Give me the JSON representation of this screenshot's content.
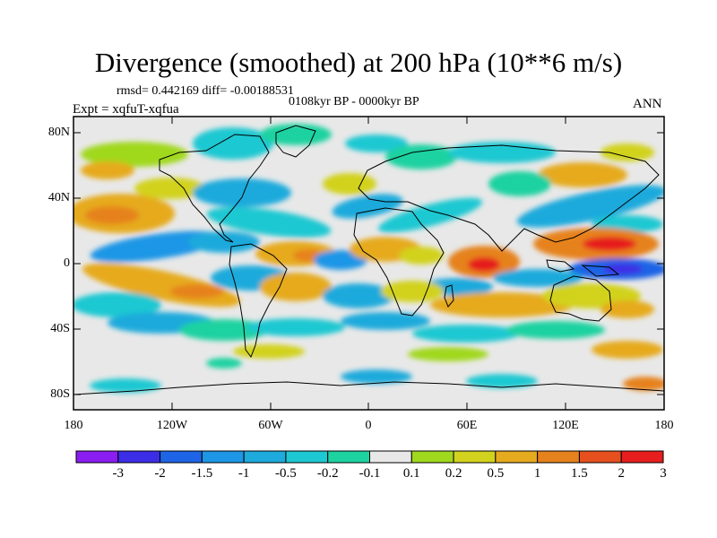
{
  "title": "Divergence (smoothed) at 200 hPa (10**6 m/s)",
  "stats": "rmsd= 0.442169 diff= -0.00188531",
  "period": "0108kyr BP - 0000kyr BP",
  "experiment": "Expt = xqfuT-xqfua",
  "season": "ANN",
  "y_axis_labels": [
    "80N",
    "40N",
    "0",
    "40S",
    "80S"
  ],
  "x_axis_labels": [
    "180",
    "120W",
    "60W",
    "0",
    "60E",
    "120E",
    "180"
  ],
  "colorbar": {
    "labels": [
      "-3",
      "-2",
      "-1.5",
      "-1",
      "-0.5",
      "-0.2",
      "-0.1",
      "0.1",
      "0.2",
      "0.5",
      "1",
      "1.5",
      "2",
      "3"
    ],
    "colors": [
      "#8a1ef0",
      "#3c2de6",
      "#1e64e6",
      "#1e96e6",
      "#1eaadc",
      "#1ec8d2",
      "#1ed2a0",
      "#e8e8e8",
      "#a0d81e",
      "#d2d21e",
      "#e6aa1e",
      "#e6821e",
      "#e6501e",
      "#e61e1e"
    ]
  },
  "map_extent": {
    "lon": [
      -180,
      180
    ],
    "lat": [
      -90,
      90
    ]
  }
}
